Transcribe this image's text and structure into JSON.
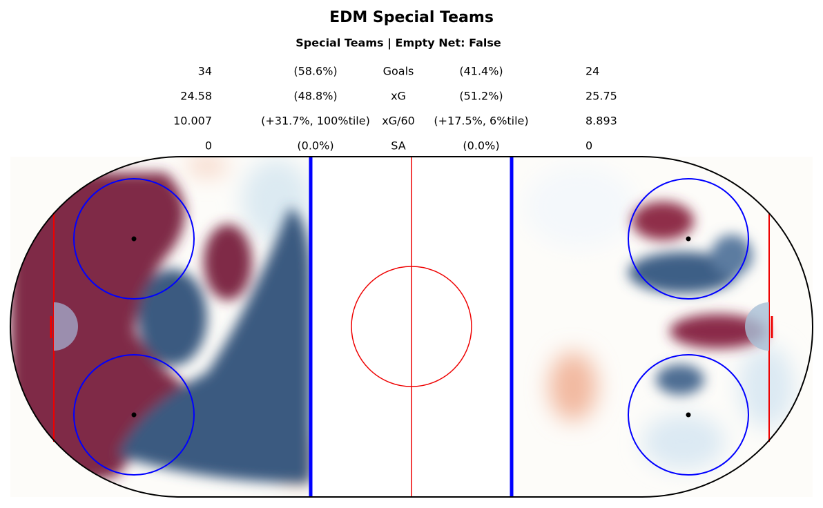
{
  "header": {
    "title": "EDM Special Teams",
    "subtitle": "Special Teams | Empty Net: False"
  },
  "stats": {
    "rows": [
      {
        "left_value": "34",
        "left_share": "(58.6%)",
        "label": "Goals",
        "right_share": "(41.4%)",
        "right_value": "24"
      },
      {
        "left_value": "24.58",
        "left_share": "(48.8%)",
        "label": "xG",
        "right_share": "(51.2%)",
        "right_value": "25.75"
      },
      {
        "left_value": "10.007",
        "left_share": "(+31.7%, 100%tile)",
        "label": "xG/60",
        "right_share": "(+17.5%, 6%tile)",
        "right_value": "8.893"
      },
      {
        "left_value": "0",
        "left_share": "(0.0%)",
        "label": "SA",
        "right_share": "(0.0%)",
        "right_value": "0"
      }
    ]
  }
}
